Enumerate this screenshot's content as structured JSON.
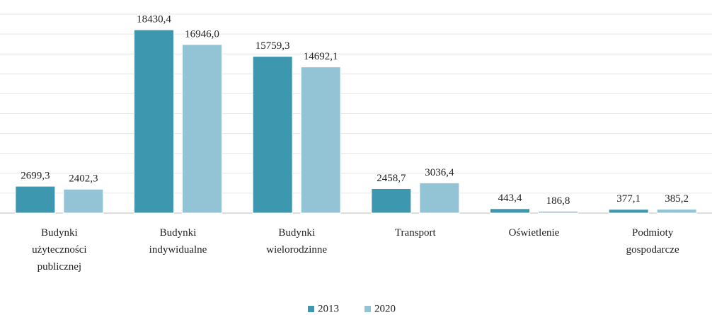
{
  "chart_data": {
    "type": "bar",
    "categories": [
      "Budynki użyteczności publicznej",
      "Budynki indywidualne",
      "Budynki wielorodzinne",
      "Transport",
      "Oświetlenie",
      "Podmioty gospodarcze"
    ],
    "series": [
      {
        "name": "2013",
        "color": "#3d97ae",
        "values": [
          2699.3,
          18430.4,
          15759.3,
          2458.7,
          443.4,
          377.1
        ],
        "value_labels": [
          "2699,3",
          "18430,4",
          "15759,3",
          "2458,7",
          "443,4",
          "377,1"
        ]
      },
      {
        "name": "2020",
        "color": "#93c4d6",
        "values": [
          2402.3,
          16946.0,
          14692.1,
          3036.4,
          186.8,
          385.2
        ],
        "value_labels": [
          "2402,3",
          "16946,0",
          "14692,1",
          "3036,4",
          "186,8",
          "385,2"
        ]
      }
    ],
    "ylim": [
      0,
      20000
    ],
    "yticks": [
      0,
      2000,
      4000,
      6000,
      8000,
      10000,
      12000,
      14000,
      16000,
      18000,
      20000
    ],
    "grid": true,
    "legend": "bottom"
  }
}
